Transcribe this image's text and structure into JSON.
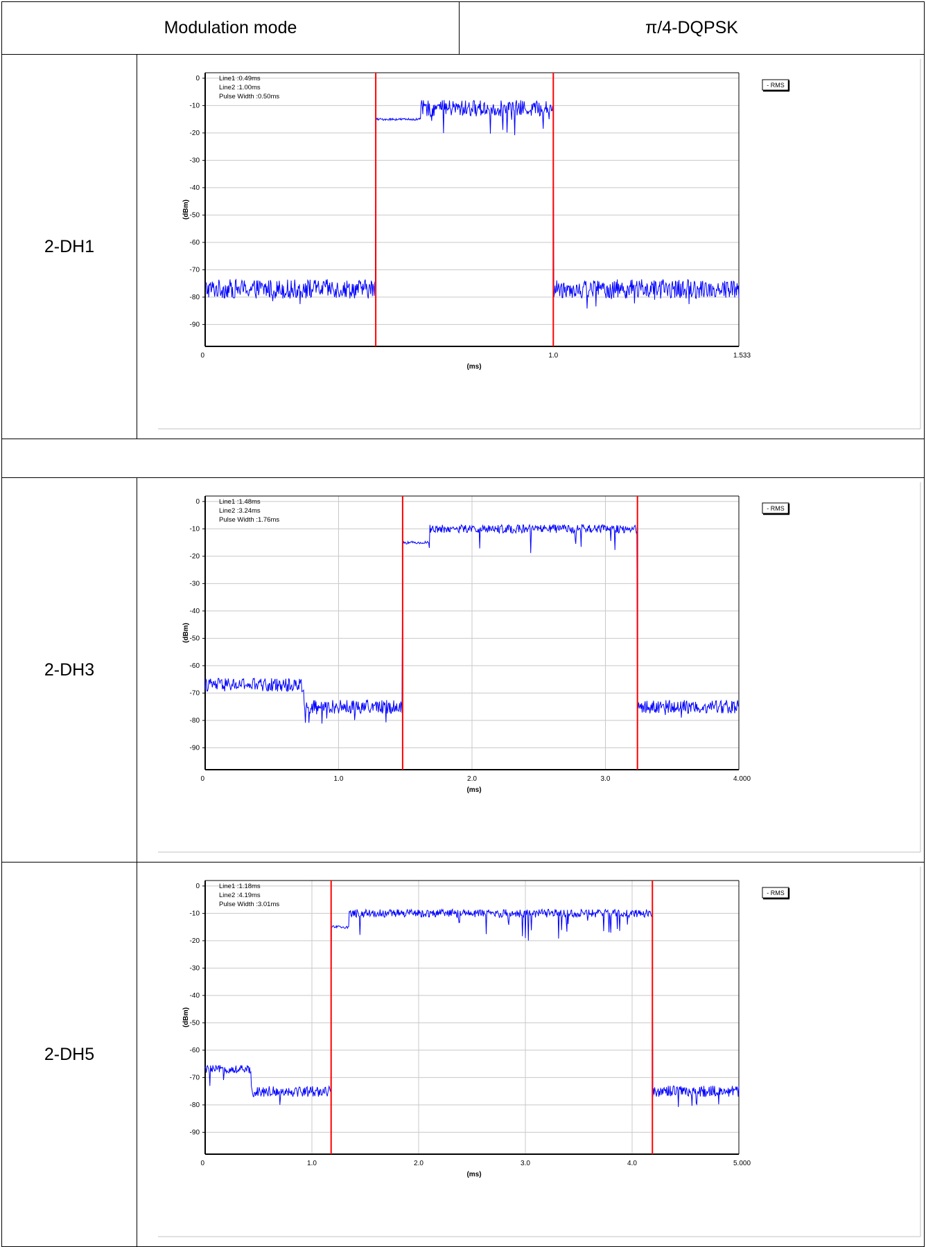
{
  "header": {
    "mode_label": "Modulation mode",
    "mode_value": "π/4-DQPSK"
  },
  "rows": [
    {
      "label": "2-DH1"
    },
    {
      "label": "2-DH3"
    },
    {
      "label": "2-DH5"
    }
  ],
  "colors": {
    "trace": "#0000ff",
    "marker": "#ff0000",
    "grid": "#c8c8c8",
    "axis": "#000000"
  },
  "chart_data": [
    {
      "type": "line",
      "title": "",
      "xlabel": "(ms)",
      "ylabel": "(dBm)",
      "xlim": [
        0,
        1.533
      ],
      "ylim": [
        -98,
        2
      ],
      "xtick_values": [
        0,
        1.0,
        1.533
      ],
      "xtick_labels": [
        "0",
        "1.0",
        "1.533"
      ],
      "ytick_values": [
        0,
        -10,
        -20,
        -30,
        -40,
        -50,
        -60,
        -70,
        -80,
        -90
      ],
      "ytick_labels": [
        "0",
        "-10",
        "-20",
        "-30",
        "-40",
        "-50",
        "-60",
        "-70",
        "-80",
        "-90"
      ],
      "grid": true,
      "legend": {
        "entries": [
          "- RMS"
        ],
        "position": "top-right"
      },
      "annotations": [
        "Line1 :0.49ms",
        "Line2 :1.00ms",
        "Pulse Width :0.50ms"
      ],
      "markers": [
        0.49,
        1.0
      ],
      "series": [
        {
          "name": "RMS",
          "segments": [
            {
              "x0": 0,
              "x1": 0.49,
              "level": -77,
              "noise": 3.5
            },
            {
              "x0": 0.49,
              "x1": 0.62,
              "level": -15,
              "noise": 0.4
            },
            {
              "x0": 0.62,
              "x1": 1.0,
              "level": -11,
              "noise": 3
            },
            {
              "x0": 1.0,
              "x1": 1.533,
              "level": -77,
              "noise": 3.5
            }
          ]
        }
      ]
    },
    {
      "type": "line",
      "title": "",
      "xlabel": "(ms)",
      "ylabel": "(dBm)",
      "xlim": [
        0,
        4.0
      ],
      "ylim": [
        -98,
        2
      ],
      "xtick_values": [
        0,
        1.0,
        2.0,
        3.0,
        4.0
      ],
      "xtick_labels": [
        "0",
        "1.0",
        "2.0",
        "3.0",
        "4.000"
      ],
      "ytick_values": [
        0,
        -10,
        -20,
        -30,
        -40,
        -50,
        -60,
        -70,
        -80,
        -90
      ],
      "ytick_labels": [
        "0",
        "-10",
        "-20",
        "-30",
        "-40",
        "-50",
        "-60",
        "-70",
        "-80",
        "-90"
      ],
      "grid": true,
      "legend": {
        "entries": [
          "- RMS"
        ],
        "position": "top-right"
      },
      "annotations": [
        "Line1 :1.48ms",
        "Line2 :3.24ms",
        "Pulse Width :1.76ms"
      ],
      "markers": [
        1.48,
        3.24
      ],
      "series": [
        {
          "name": "RMS",
          "segments": [
            {
              "x0": 0,
              "x1": 0.74,
              "level": -67,
              "noise": 2.5
            },
            {
              "x0": 0.74,
              "x1": 1.48,
              "level": -75,
              "noise": 2.5
            },
            {
              "x0": 1.48,
              "x1": 1.68,
              "level": -15,
              "noise": 0.5
            },
            {
              "x0": 1.68,
              "x1": 3.24,
              "level": -10,
              "noise": 1.5
            },
            {
              "x0": 3.24,
              "x1": 4.0,
              "level": -75,
              "noise": 2.5
            }
          ]
        }
      ]
    },
    {
      "type": "line",
      "title": "",
      "xlabel": "(ms)",
      "ylabel": "(dBm)",
      "xlim": [
        0,
        5.0
      ],
      "ylim": [
        -98,
        2
      ],
      "xtick_values": [
        0,
        1.0,
        2.0,
        3.0,
        4.0,
        5.0
      ],
      "xtick_labels": [
        "0",
        "1.0",
        "2.0",
        "3.0",
        "4.0",
        "5.000"
      ],
      "ytick_values": [
        0,
        -10,
        -20,
        -30,
        -40,
        -50,
        -60,
        -70,
        -80,
        -90
      ],
      "ytick_labels": [
        "0",
        "-10",
        "-20",
        "-30",
        "-40",
        "-50",
        "-60",
        "-70",
        "-80",
        "-90"
      ],
      "grid": true,
      "legend": {
        "entries": [
          "- RMS"
        ],
        "position": "top-right"
      },
      "annotations": [
        "Line1 :1.18ms",
        "Line2 :4.19ms",
        "Pulse Width :3.01ms"
      ],
      "markers": [
        1.18,
        4.19
      ],
      "series": [
        {
          "name": "RMS",
          "segments": [
            {
              "x0": 0,
              "x1": 0.43,
              "level": -67,
              "noise": 1.5
            },
            {
              "x0": 0.43,
              "x1": 1.18,
              "level": -75,
              "noise": 2
            },
            {
              "x0": 1.18,
              "x1": 1.35,
              "level": -15,
              "noise": 0.5
            },
            {
              "x0": 1.35,
              "x1": 4.19,
              "level": -10,
              "noise": 1.5
            },
            {
              "x0": 4.19,
              "x1": 5.0,
              "level": -75,
              "noise": 2
            }
          ]
        }
      ]
    }
  ]
}
